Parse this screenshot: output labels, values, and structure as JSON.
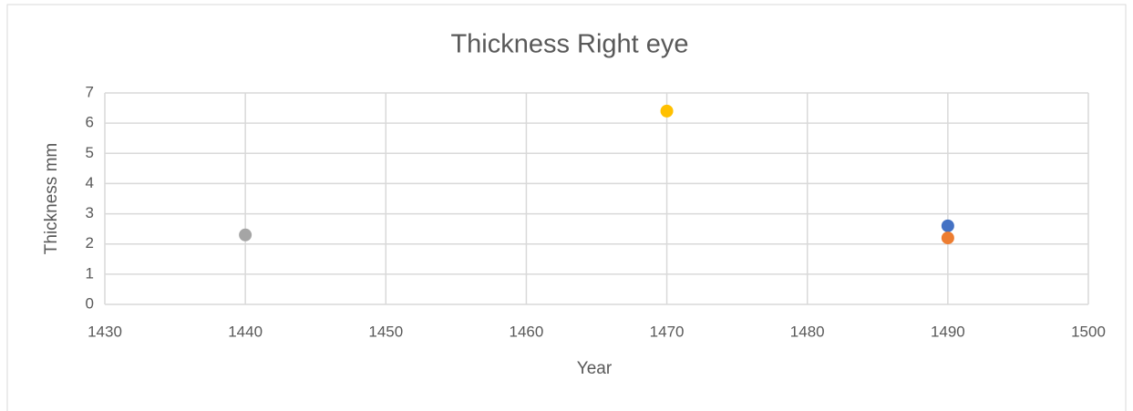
{
  "chart_data": {
    "type": "scatter",
    "title": "Thickness Right eye",
    "xlabel": "Year",
    "ylabel": "Thickness mm",
    "series": [
      {
        "color": "#4472c4",
        "x": [
          1490
        ],
        "values": [
          2.6
        ]
      },
      {
        "color": "#ed7d31",
        "x": [
          1490
        ],
        "values": [
          2.2
        ]
      },
      {
        "color": "#a5a5a5",
        "x": [
          1440
        ],
        "values": [
          2.3
        ]
      },
      {
        "color": "#ffc000",
        "x": [
          1470
        ],
        "values": [
          6.4
        ]
      }
    ],
    "xlim": [
      1430,
      1500
    ],
    "xticks": [
      1430,
      1440,
      1450,
      1460,
      1470,
      1480,
      1490,
      1500
    ],
    "ylim": [
      0,
      7
    ],
    "yticks": [
      0,
      1,
      2,
      3,
      4,
      5,
      6,
      7
    ],
    "grid": true
  }
}
